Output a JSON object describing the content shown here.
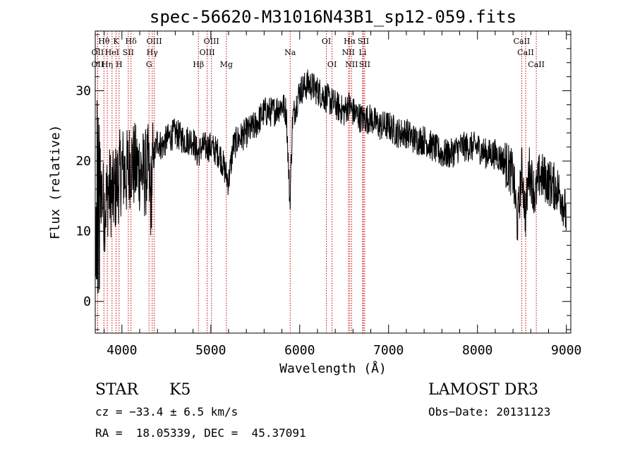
{
  "chart_data": {
    "type": "line",
    "title": "spec-56620-M31016N43B1_sp12-059.fits",
    "xlabel": "Wavelength (Å)",
    "ylabel": "Flux (relative)",
    "xlim": [
      3700,
      9050
    ],
    "ylim": [
      -4.5,
      38.5
    ],
    "xticks": [
      4000,
      5000,
      6000,
      7000,
      8000,
      9000
    ],
    "yticks": [
      0,
      10,
      20,
      30
    ],
    "line_color": "#000000",
    "marker_color": "#cc0000",
    "spectrum_anchors": [
      [
        3700,
        0
      ],
      [
        3720,
        24
      ],
      [
        3750,
        18
      ],
      [
        3780,
        15
      ],
      [
        3800,
        13
      ],
      [
        3850,
        16
      ],
      [
        3900,
        15
      ],
      [
        3950,
        17
      ],
      [
        4000,
        19
      ],
      [
        4050,
        18
      ],
      [
        4100,
        20
      ],
      [
        4150,
        19
      ],
      [
        4200,
        19
      ],
      [
        4250,
        18
      ],
      [
        4300,
        19
      ],
      [
        4320,
        14
      ],
      [
        4350,
        20
      ],
      [
        4400,
        23
      ],
      [
        4450,
        22
      ],
      [
        4500,
        23
      ],
      [
        4600,
        24
      ],
      [
        4700,
        23
      ],
      [
        4800,
        23
      ],
      [
        4850,
        21
      ],
      [
        4900,
        22
      ],
      [
        4950,
        22
      ],
      [
        5000,
        22
      ],
      [
        5100,
        21
      ],
      [
        5150,
        19
      ],
      [
        5200,
        17
      ],
      [
        5250,
        22
      ],
      [
        5300,
        23
      ],
      [
        5400,
        24
      ],
      [
        5500,
        25
      ],
      [
        5600,
        27
      ],
      [
        5700,
        27
      ],
      [
        5800,
        28
      ],
      [
        5850,
        27
      ],
      [
        5890,
        14
      ],
      [
        5920,
        26
      ],
      [
        6000,
        30
      ],
      [
        6100,
        31
      ],
      [
        6200,
        30
      ],
      [
        6300,
        29
      ],
      [
        6400,
        28
      ],
      [
        6500,
        27
      ],
      [
        6550,
        28
      ],
      [
        6600,
        27
      ],
      [
        6700,
        26
      ],
      [
        6800,
        26
      ],
      [
        6900,
        25
      ],
      [
        7000,
        25
      ],
      [
        7100,
        24
      ],
      [
        7200,
        24
      ],
      [
        7300,
        23
      ],
      [
        7400,
        23
      ],
      [
        7500,
        22
      ],
      [
        7600,
        21
      ],
      [
        7700,
        21
      ],
      [
        7800,
        22
      ],
      [
        7900,
        22
      ],
      [
        8000,
        22
      ],
      [
        8100,
        21
      ],
      [
        8200,
        21
      ],
      [
        8300,
        20
      ],
      [
        8400,
        18
      ],
      [
        8450,
        11
      ],
      [
        8500,
        19
      ],
      [
        8540,
        12
      ],
      [
        8580,
        19
      ],
      [
        8650,
        15
      ],
      [
        8700,
        18
      ],
      [
        8800,
        17
      ],
      [
        8900,
        16
      ],
      [
        8950,
        15
      ],
      [
        9000,
        12
      ]
    ],
    "spectral_lines": [
      {
        "label": "Hθ",
        "wavelength": 3798,
        "row": 0
      },
      {
        "label": "K",
        "wavelength": 3934,
        "row": 0
      },
      {
        "label": "Hδ",
        "wavelength": 4102,
        "row": 0
      },
      {
        "label": "OII",
        "wavelength": 3727,
        "row": 1
      },
      {
        "label": "HeI",
        "wavelength": 3889,
        "row": 1
      },
      {
        "label": "SII",
        "wavelength": 4072,
        "row": 1
      },
      {
        "label": "OII",
        "wavelength": 3727,
        "row": 2
      },
      {
        "label": "Hη",
        "wavelength": 3835,
        "row": 2
      },
      {
        "label": "H",
        "wavelength": 3968,
        "row": 2
      },
      {
        "label": "OIII",
        "wavelength": 4363,
        "row": 0
      },
      {
        "label": "Hγ",
        "wavelength": 4341,
        "row": 1
      },
      {
        "label": "G",
        "wavelength": 4305,
        "row": 2
      },
      {
        "label": "OIII",
        "wavelength": 5007,
        "row": 0
      },
      {
        "label": "OIII",
        "wavelength": 4959,
        "row": 1
      },
      {
        "label": "Hβ",
        "wavelength": 4861,
        "row": 2
      },
      {
        "label": "Mg",
        "wavelength": 5175,
        "row": 2
      },
      {
        "label": "Na",
        "wavelength": 5893,
        "row": 1
      },
      {
        "label": "OI",
        "wavelength": 6300,
        "row": 0
      },
      {
        "label": "OI",
        "wavelength": 6364,
        "row": 2
      },
      {
        "label": "Hα",
        "wavelength": 6563,
        "row": 0
      },
      {
        "label": "SII",
        "wavelength": 6716,
        "row": 0
      },
      {
        "label": "NII",
        "wavelength": 6548,
        "row": 1
      },
      {
        "label": "Li",
        "wavelength": 6708,
        "row": 1
      },
      {
        "label": "NII",
        "wavelength": 6584,
        "row": 2
      },
      {
        "label": "SII",
        "wavelength": 6731,
        "row": 2
      },
      {
        "label": "CaII",
        "wavelength": 8498,
        "row": 0
      },
      {
        "label": "CaII",
        "wavelength": 8542,
        "row": 1
      },
      {
        "label": "CaII",
        "wavelength": 8662,
        "row": 2
      }
    ]
  },
  "info": {
    "object_class": "STAR",
    "subclass": "K5",
    "survey": "LAMOST DR3",
    "cz": "cz = −33.4 ± 6.5 km/s",
    "obs_date": "Obs−Date: 20131123",
    "coords": "RA =  18.05339, DEC =  45.37091"
  }
}
